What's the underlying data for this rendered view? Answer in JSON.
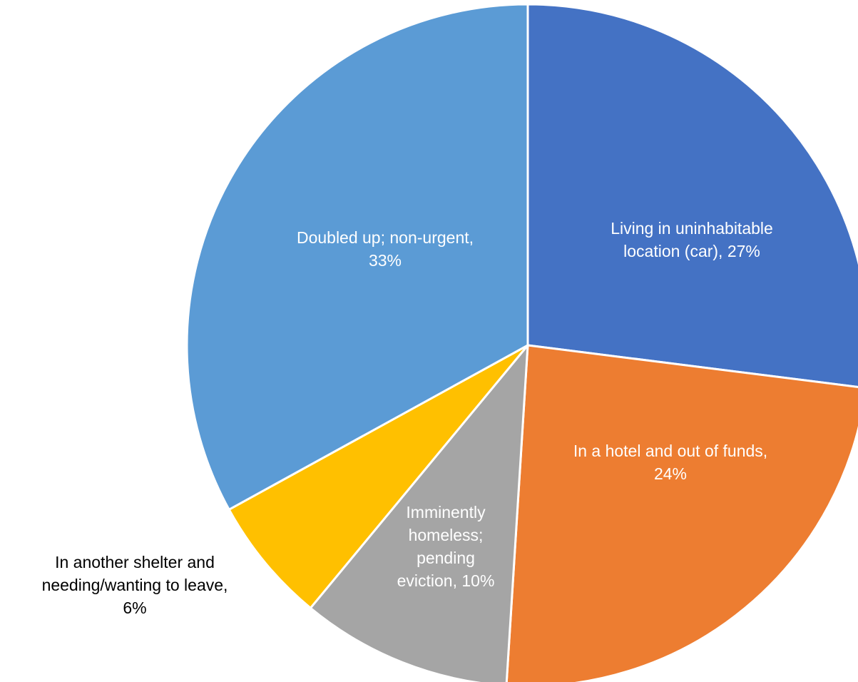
{
  "chart_data": {
    "type": "pie",
    "start_angle_deg": 0,
    "direction": "clockwise",
    "slices": [
      {
        "label": "Living in uninhabitable location (car)",
        "value": 27,
        "value_label": "27%",
        "color": "#4472C4",
        "label_color": "#FFFFFF",
        "label_lines": [
          "Living in uninhabitable",
          "location (car), 27%"
        ]
      },
      {
        "label": "In a hotel and out of funds",
        "value": 24,
        "value_label": "24%",
        "color": "#ED7D31",
        "label_color": "#FFFFFF",
        "label_lines": [
          "In a hotel and out of funds,",
          "24%"
        ]
      },
      {
        "label": "Imminently homeless; pending eviction",
        "value": 10,
        "value_label": "10%",
        "color": "#A5A5A5",
        "label_color": "#FFFFFF",
        "label_lines": [
          "Imminently",
          "homeless;",
          "pending",
          "eviction, 10%"
        ]
      },
      {
        "label": "In another shelter and needing/wanting to leave",
        "value": 6,
        "value_label": "6%",
        "color": "#FFC000",
        "label_color": "#000000",
        "label_lines": [
          "In another shelter and",
          "needing/wanting to leave,",
          "6%"
        ]
      },
      {
        "label": "Doubled up; non-urgent",
        "value": 33,
        "value_label": "33%",
        "color": "#5B9BD5",
        "label_color": "#FFFFFF",
        "label_lines": [
          "Doubled up; non-urgent,",
          "33%"
        ]
      }
    ]
  }
}
